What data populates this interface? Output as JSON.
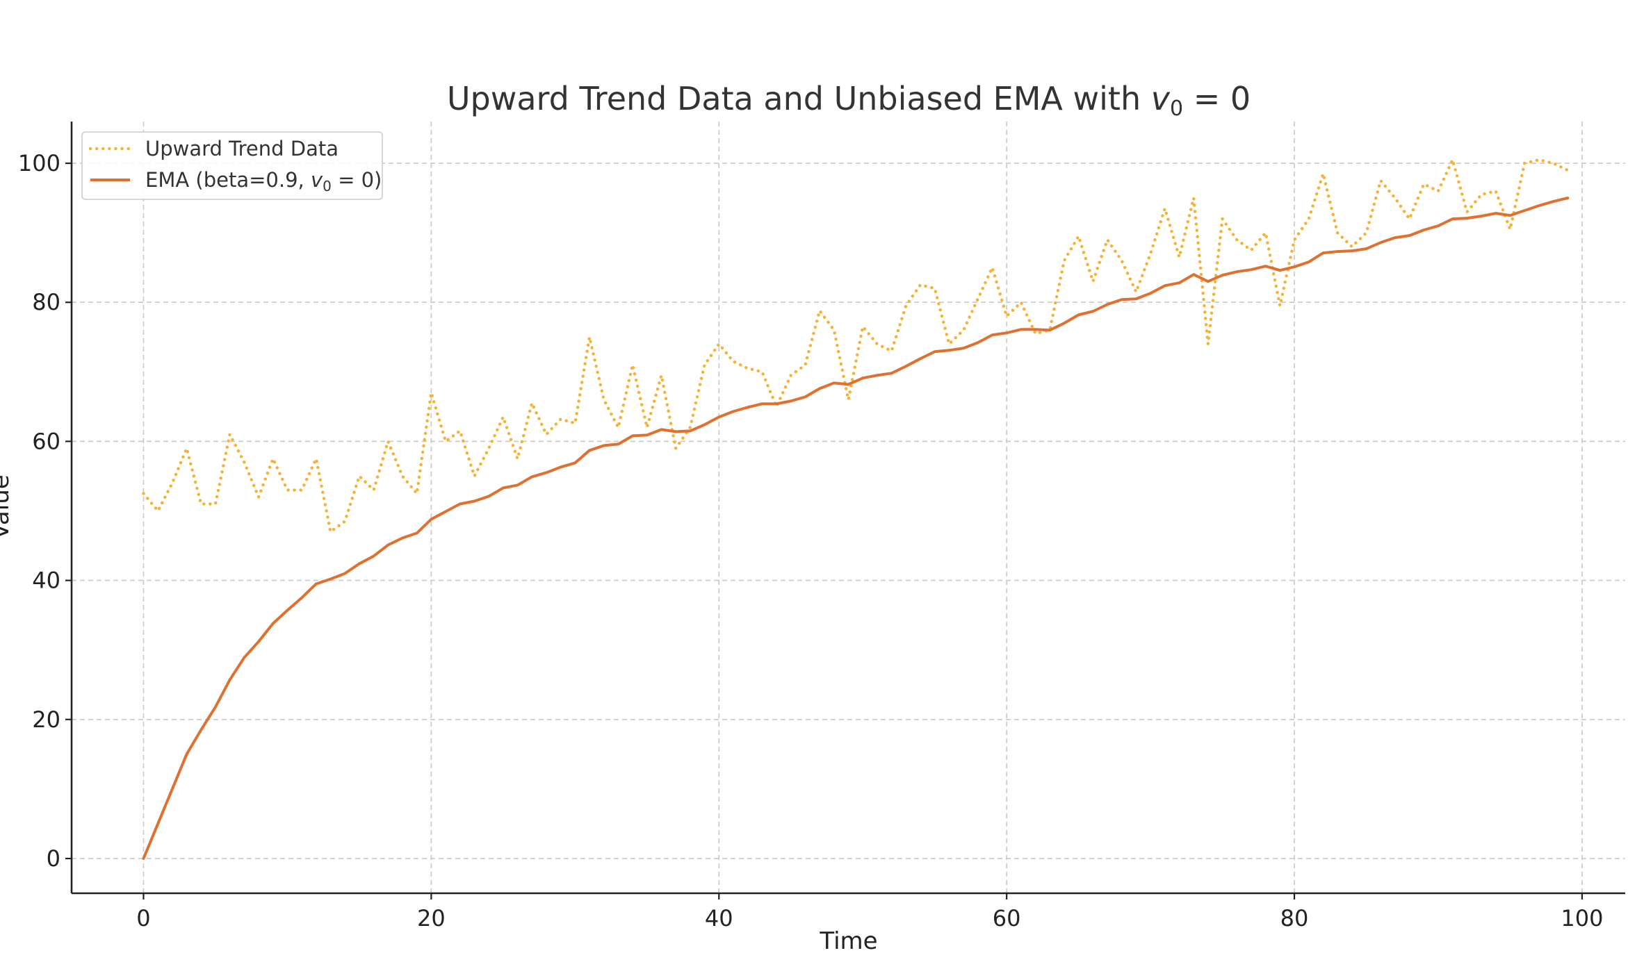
{
  "chart_data": {
    "type": "line",
    "title_main": "Upward Trend Data and Unbiased EMA with ",
    "title_var": "v",
    "title_sub": "0",
    "title_tail": " = 0",
    "xlabel": "Time",
    "ylabel": "Value",
    "xlim": [
      -5,
      103
    ],
    "ylim": [
      -5,
      106
    ],
    "xticks": [
      0,
      20,
      40,
      60,
      80,
      100
    ],
    "yticks": [
      0,
      20,
      40,
      60,
      80,
      100
    ],
    "grid": true,
    "legend_position": "top-left",
    "series": [
      {
        "name": "Upward Trend Data",
        "style": "dotted",
        "color": "#F5B236",
        "x": [
          0,
          1,
          2,
          3,
          4,
          5,
          6,
          7,
          8,
          9,
          10,
          11,
          12,
          13,
          14,
          15,
          16,
          17,
          18,
          19,
          20,
          21,
          22,
          23,
          24,
          25,
          26,
          27,
          28,
          29,
          30,
          31,
          32,
          33,
          34,
          35,
          36,
          37,
          38,
          39,
          40,
          41,
          42,
          43,
          44,
          45,
          46,
          47,
          48,
          49,
          50,
          51,
          52,
          53,
          54,
          55,
          56,
          57,
          58,
          59,
          60,
          61,
          62,
          63,
          64,
          65,
          66,
          67,
          68,
          69,
          70,
          71,
          72,
          73,
          74,
          75,
          76,
          77,
          78,
          79,
          80,
          81,
          82,
          83,
          84,
          85,
          86,
          87,
          88,
          89,
          90,
          91,
          92,
          93,
          94,
          95,
          96,
          97,
          98,
          99
        ],
        "y": [
          52.5,
          50,
          54,
          59,
          51,
          51,
          61,
          57,
          52,
          57.5,
          53,
          53,
          57.5,
          47,
          48.5,
          55,
          53,
          60,
          55,
          52.5,
          67,
          60,
          61.5,
          55,
          59,
          63.5,
          57.5,
          65.5,
          61,
          63.2,
          62.6,
          75,
          66,
          62,
          71,
          62,
          69.5,
          59,
          62,
          71,
          74,
          71.5,
          70.5,
          70,
          65,
          69.5,
          71,
          78.8,
          76,
          66,
          76.5,
          74,
          73,
          79.5,
          82.5,
          82,
          74,
          76,
          80.5,
          85,
          78,
          80,
          75.5,
          76,
          86,
          89.5,
          83,
          89,
          86,
          81.5,
          87,
          93.5,
          86.5,
          95,
          74,
          92,
          89,
          87.5,
          90,
          79.5,
          89,
          92,
          98.5,
          90,
          88,
          90,
          97.5,
          95,
          92,
          97,
          96,
          100.5,
          93,
          95.5,
          96,
          90.5,
          100,
          100.5,
          100,
          99
        ]
      },
      {
        "name": "EMA (beta=0.9, ",
        "name_var": "v",
        "name_sub": "0",
        "name_tail": " = 0)",
        "style": "solid",
        "color": "#E07030",
        "x": [
          0,
          1,
          2,
          3,
          4,
          5,
          6,
          7,
          8,
          9,
          10,
          11,
          12,
          13,
          14,
          15,
          16,
          17,
          18,
          19,
          20,
          21,
          22,
          23,
          24,
          25,
          26,
          27,
          28,
          29,
          30,
          31,
          32,
          33,
          34,
          35,
          36,
          37,
          38,
          39,
          40,
          41,
          42,
          43,
          44,
          45,
          46,
          47,
          48,
          49,
          50,
          51,
          52,
          53,
          54,
          55,
          56,
          57,
          58,
          59,
          60,
          61,
          62,
          63,
          64,
          65,
          66,
          67,
          68,
          69,
          70,
          71,
          72,
          73,
          74,
          75,
          76,
          77,
          78,
          79,
          80,
          81,
          82,
          83,
          84,
          85,
          86,
          87,
          88,
          89,
          90,
          91,
          92,
          93,
          94,
          95,
          96,
          97,
          98,
          99
        ],
        "y": [
          0,
          5,
          10,
          15,
          18.5,
          21.8,
          25.7,
          28.9,
          31.2,
          33.8,
          35.7,
          37.5,
          39.5,
          40.2,
          41,
          42.4,
          43.5,
          45.1,
          46.1,
          46.8,
          48.8,
          49.9,
          51,
          51.4,
          52.1,
          53.3,
          53.7,
          54.9,
          55.5,
          56.3,
          56.9,
          58.7,
          59.4,
          59.6,
          60.8,
          60.9,
          61.7,
          61.4,
          61.5,
          62.4,
          63.5,
          64.3,
          64.9,
          65.4,
          65.4,
          65.8,
          66.4,
          67.6,
          68.4,
          68.2,
          69.1,
          69.5,
          69.8,
          70.8,
          71.9,
          72.9,
          73.1,
          73.4,
          74.2,
          75.3,
          75.6,
          76.1,
          76.1,
          76,
          77,
          78.2,
          78.7,
          79.7,
          80.4,
          80.5,
          81.3,
          82.4,
          82.8,
          84,
          83,
          83.9,
          84.4,
          84.7,
          85.2,
          84.6,
          85.1,
          85.8,
          87.1,
          87.3,
          87.4,
          87.7,
          88.6,
          89.3,
          89.6,
          90.4,
          91,
          92,
          92.1,
          92.4,
          92.8,
          92.5,
          93.2,
          93.9,
          94.5,
          95
        ]
      }
    ]
  }
}
